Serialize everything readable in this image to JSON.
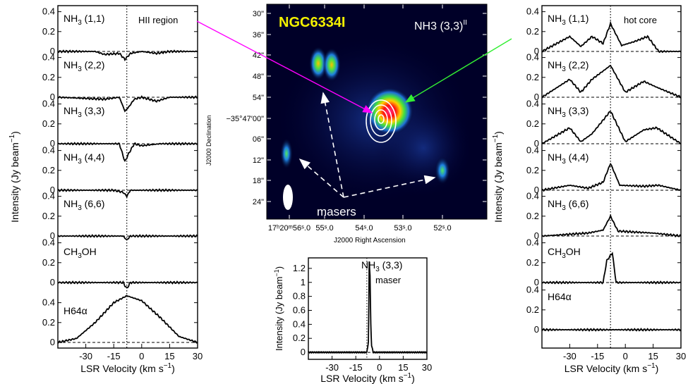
{
  "left_panel": {
    "annotation": "HII region",
    "xlabel": "LSR Velocity  (km s",
    "xlabel_sup": "−1",
    "xlabel_end": ")",
    "ylabel": "Intensity  (Jy beam",
    "ylabel_sup": "−1",
    "ylabel_end": ")",
    "xticks": [
      "-30",
      "-15",
      "0",
      "15",
      "30"
    ],
    "dotted_velocity": -8,
    "rows": [
      {
        "label": "NH",
        "sub": "3",
        "tail": " (1,1)",
        "yticks": [
          "0.4",
          "0.2",
          "0"
        ]
      },
      {
        "label": "NH",
        "sub": "3",
        "tail": " (2,2)",
        "yticks": [
          "0.4",
          "0.2",
          "0"
        ]
      },
      {
        "label": "NH",
        "sub": "3",
        "tail": " (3,3)",
        "yticks": [
          "0.4",
          "0.2",
          "0"
        ]
      },
      {
        "label": "NH",
        "sub": "3",
        "tail": " (4,4)",
        "yticks": [
          "0.4",
          "0.2",
          "0"
        ]
      },
      {
        "label": "NH",
        "sub": "3",
        "tail": " (6,6)",
        "yticks": [
          "0.4",
          "0.2",
          "0"
        ]
      },
      {
        "label": "CH",
        "sub": "3",
        "tail": "OH",
        "yticks": [
          "0.4",
          "0.2",
          "0"
        ]
      },
      {
        "label": "H64α",
        "sub": "",
        "tail": "",
        "yticks": [
          "0.4",
          "0.2",
          "0"
        ]
      }
    ]
  },
  "right_panel": {
    "annotation": "hot core",
    "xlabel": "LSR Velocity  (km s",
    "xlabel_sup": "−1",
    "xlabel_end": ")",
    "ylabel": "Intensity  (Jy beam",
    "ylabel_sup": "−1",
    "ylabel_end": ")",
    "xticks": [
      "-30",
      "-15",
      "0",
      "15",
      "30"
    ],
    "rows": [
      {
        "label": "NH",
        "sub": "3",
        "tail": " (1,1)",
        "yticks": [
          "0.4",
          "0.2",
          "0"
        ]
      },
      {
        "label": "NH",
        "sub": "3",
        "tail": " (2,2)",
        "yticks": [
          "0.4",
          "0.2",
          "0"
        ]
      },
      {
        "label": "NH",
        "sub": "3",
        "tail": " (3,3)",
        "yticks": [
          "0.4",
          "0.2",
          "0"
        ]
      },
      {
        "label": "NH",
        "sub": "3",
        "tail": " (4,4)",
        "yticks": [
          "0.4",
          "0.2",
          "0"
        ]
      },
      {
        "label": "NH",
        "sub": "3",
        "tail": " (6,6)",
        "yticks": [
          "0.4",
          "0.2",
          "0"
        ]
      },
      {
        "label": "CH",
        "sub": "3",
        "tail": "OH",
        "yticks": [
          "0.4",
          "0.2",
          "0"
        ]
      },
      {
        "label": "H64α",
        "sub": "",
        "tail": "",
        "yticks": [
          "0.4",
          "0.2",
          "0"
        ]
      }
    ]
  },
  "map": {
    "title": "NGC6334I",
    "line": "NH3 (3,3)",
    "line_mark": "II",
    "masers_label": "masers",
    "ylabel": "J2000 Declination",
    "xlabel": "J2000 Right Ascension",
    "dec_ticks": [
      "30\"",
      "36\"",
      "42\"",
      "48\"",
      "54\"",
      "−35°47′00\"",
      "06\"",
      "12\"",
      "18\"",
      "24\""
    ],
    "ra_ticks": [
      "17ʰ20ᵐ56ˢ.0",
      "55ˢ.0",
      "54ˢ.0",
      "53ˢ.0",
      "52ˢ.0"
    ],
    "colors": {
      "title": "#f3f000",
      "magenta_arrow": "#ff00ff",
      "green_arrow": "#33ee33"
    }
  },
  "maser_panel": {
    "label": "NH",
    "sub": "3",
    "tail": " (3,3)",
    "label2": "maser",
    "yticks": [
      "1.2",
      "1",
      "0.8",
      "0.6",
      "0.4",
      "0.2",
      "0"
    ],
    "xticks": [
      "-30",
      "-15",
      "0",
      "15",
      "30"
    ],
    "xlabel": "LSR Velocity  (km s",
    "xlabel_sup": "−1",
    "xlabel_end": ")",
    "ylabel": "Intensity  (Jy beam",
    "ylabel_sup": "−1",
    "ylabel_end": ")"
  },
  "chart_data": [
    {
      "type": "line",
      "panel": "HII region spectra",
      "x_range": [
        -45,
        30
      ],
      "series": [
        {
          "name": "NH3 (1,1)",
          "x": [
            -45,
            -25,
            -20,
            -12,
            -9,
            -6,
            0,
            8,
            15,
            30
          ],
          "y": [
            0,
            0,
            -0.03,
            -0.02,
            -0.08,
            -0.02,
            0,
            -0.02,
            0,
            0
          ]
        },
        {
          "name": "NH3 (2,2)",
          "x": [
            -45,
            -20,
            -12,
            -9,
            -7,
            -4,
            0,
            8,
            15,
            30
          ],
          "y": [
            0,
            -0.02,
            0,
            -0.14,
            -0.1,
            -0.02,
            0,
            -0.04,
            0,
            0
          ]
        },
        {
          "name": "NH3 (3,3)",
          "x": [
            -45,
            -20,
            -12,
            -9,
            -7,
            -4,
            0,
            10,
            30
          ],
          "y": [
            0,
            0,
            0,
            -0.18,
            -0.1,
            0,
            -0.02,
            0,
            0
          ]
        },
        {
          "name": "NH3 (4,4)",
          "x": [
            -45,
            -15,
            -10,
            -8,
            -6,
            0,
            30
          ],
          "y": [
            0,
            0,
            -0.02,
            -0.06,
            0,
            0,
            0
          ]
        },
        {
          "name": "NH3 (6,6)",
          "x": [
            -45,
            -10,
            -8,
            -6,
            0,
            30
          ],
          "y": [
            0,
            0,
            -0.04,
            0,
            0,
            0
          ]
        },
        {
          "name": "CH3OH",
          "x": [
            -45,
            -10,
            -8,
            -6,
            0,
            30
          ],
          "y": [
            0,
            0,
            -0.06,
            0,
            0,
            0
          ]
        },
        {
          "name": "H64α",
          "x": [
            -45,
            -35,
            -25,
            -15,
            -8,
            0,
            10,
            20,
            30
          ],
          "y": [
            0,
            0.04,
            0.2,
            0.4,
            0.47,
            0.42,
            0.25,
            0.06,
            0
          ]
        }
      ]
    },
    {
      "type": "line",
      "panel": "hot core spectra",
      "x_range": [
        -45,
        30
      ],
      "series": [
        {
          "name": "NH3 (1,1)",
          "x": [
            -45,
            -30,
            -24,
            -18,
            -12,
            -8,
            -2,
            5,
            12,
            18,
            30
          ],
          "y": [
            0,
            0.15,
            0.05,
            0.15,
            0.08,
            0.28,
            0.06,
            0.1,
            0.15,
            0,
            0
          ]
        },
        {
          "name": "NH3 (2,2)",
          "x": [
            -45,
            -30,
            -24,
            -18,
            -8,
            0,
            10,
            17,
            30
          ],
          "y": [
            0,
            0.18,
            0.05,
            0.18,
            0.32,
            0.05,
            0.16,
            0.1,
            0
          ]
        },
        {
          "name": "NH3 (3,3)",
          "x": [
            -45,
            -30,
            -24,
            -18,
            -8,
            0,
            10,
            17,
            30
          ],
          "y": [
            0,
            0.16,
            0.02,
            0.1,
            0.33,
            0.02,
            0.14,
            0.16,
            0
          ]
        },
        {
          "name": "NH3 (4,4)",
          "x": [
            -45,
            -30,
            -20,
            -12,
            -8,
            -3,
            10,
            18,
            30
          ],
          "y": [
            0,
            0.05,
            0.02,
            0.08,
            0.27,
            0.05,
            0.04,
            0.05,
            0
          ]
        },
        {
          "name": "NH3 (6,6)",
          "x": [
            -45,
            -20,
            -12,
            -8,
            -4,
            5,
            15,
            30
          ],
          "y": [
            0,
            0.03,
            0.06,
            0.2,
            0.05,
            0.04,
            0.03,
            0
          ]
        },
        {
          "name": "CH3OH",
          "x": [
            -45,
            -12,
            -10,
            -7,
            -5,
            0,
            30
          ],
          "y": [
            0,
            0,
            0.22,
            0.3,
            0,
            0,
            0
          ]
        },
        {
          "name": "H64α",
          "x": [
            -45,
            -20,
            0,
            20,
            30
          ],
          "y": [
            0,
            0,
            0,
            0,
            0
          ]
        }
      ]
    },
    {
      "type": "line",
      "panel": "NH3 (3,3) maser spectrum",
      "x_range": [
        -45,
        30
      ],
      "ylim": [
        -0.1,
        1.3
      ],
      "series": [
        {
          "name": "NH3 (3,3) maser",
          "x": [
            -45,
            -20,
            -8,
            -7,
            -6.5,
            -6,
            -5.5,
            -5,
            -4,
            0,
            30
          ],
          "y": [
            0,
            0,
            0,
            0.15,
            1.3,
            1.1,
            0.4,
            0.1,
            0,
            0,
            0
          ]
        }
      ]
    }
  ]
}
